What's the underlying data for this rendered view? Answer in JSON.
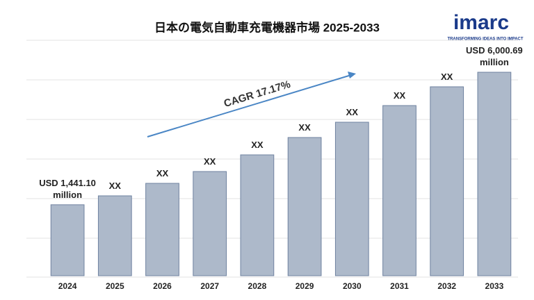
{
  "chart_data": {
    "type": "bar",
    "title": "日本の電気自動車充電機器市場 2025-2033",
    "categories": [
      "2024",
      "2025",
      "2026",
      "2027",
      "2028",
      "2029",
      "2030",
      "2031",
      "2032",
      "2033"
    ],
    "values": [
      1441.1,
      1748,
      2178,
      2584,
      3158,
      3755,
      4281,
      4854,
      5500,
      6000.69
    ],
    "value_labels": [
      "USD 1,441.10 million",
      "XX",
      "XX",
      "XX",
      "XX",
      "XX",
      "XX",
      "XX",
      "XX",
      "USD 6,000.69 million"
    ],
    "color": "#adb9ca",
    "ylim": [
      -1000,
      6300
    ],
    "annotation": "CAGR 17.17%",
    "logo": {
      "name": "imarc",
      "tagline": "TRANSFORMING IDEAS INTO IMPACT"
    }
  }
}
